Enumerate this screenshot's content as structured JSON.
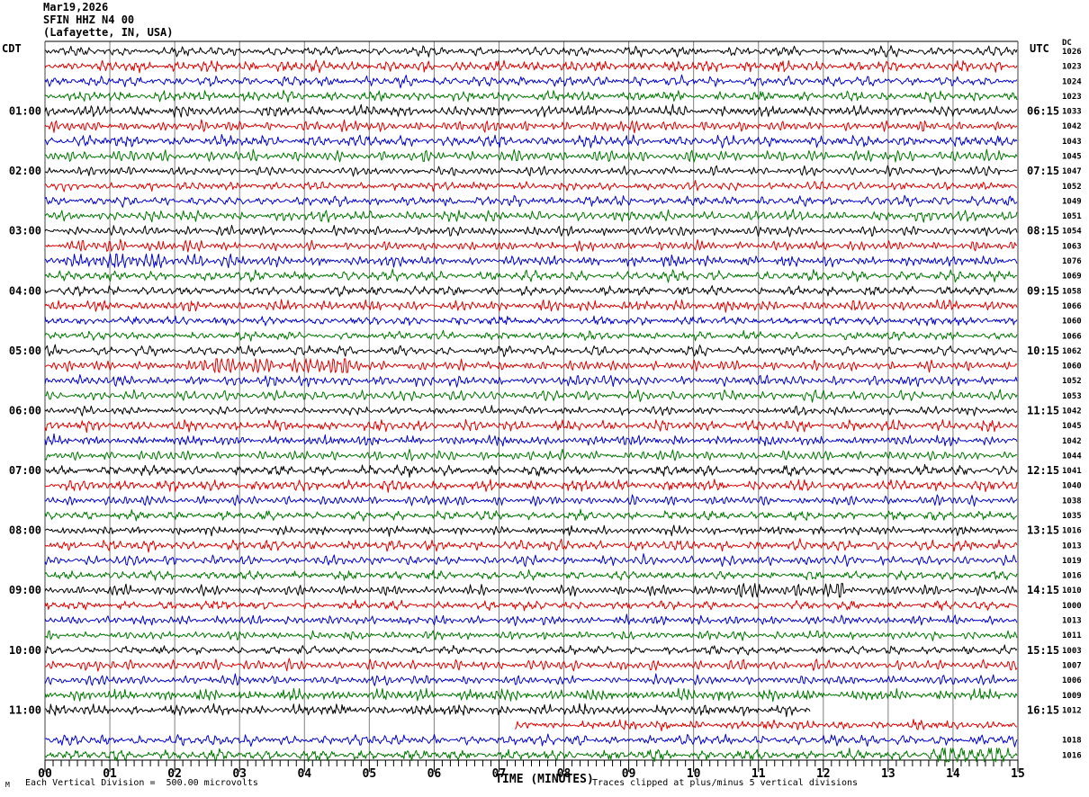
{
  "header": {
    "date": "Mar19,2026",
    "station": "SFIN HHZ N4 00",
    "location": "(Lafayette, IN, USA)"
  },
  "axes": {
    "left_label": "CDT",
    "right_label": "UTC",
    "dc_label": "DC",
    "x_label": "TIME (MINUTES)",
    "x_ticks": [
      "00",
      "01",
      "02",
      "03",
      "04",
      "05",
      "06",
      "07",
      "08",
      "09",
      "10",
      "11",
      "12",
      "13",
      "14",
      "15"
    ]
  },
  "footer": {
    "left_note": "Each Vertical Division =  500.00 microvolts",
    "right_note": "Traces clipped at plus/minus 5 vertical divisions",
    "corner_glyph": "M"
  },
  "chart_data": {
    "type": "line",
    "subtype": "helicorder-seismogram",
    "title": "SFIN HHZ N4 00 (Lafayette, IN, USA) Mar19,2026",
    "xlabel": "TIME (MINUTES)",
    "x_range_minutes": [
      0,
      15
    ],
    "major_tick_every_minutes": 1,
    "minor_divisions_per_minute": 8,
    "minutes_per_row": 15,
    "rows_per_hour": 4,
    "grid_color": "#808080",
    "border_color": "#404040",
    "trace_colors": {
      "black": "#000000",
      "red": "#e00000",
      "blue": "#0000cc",
      "green": "#007700"
    },
    "vertical_division_microvolts": 500.0,
    "clip_divisions": 5,
    "rows": [
      {
        "c": "black",
        "dc": "1026"
      },
      {
        "c": "red",
        "dc": "1023"
      },
      {
        "c": "blue",
        "dc": "1024"
      },
      {
        "c": "green",
        "dc": "1023"
      },
      {
        "c": "black",
        "dc": "1033",
        "cdt": "01:00",
        "utc": "06:15"
      },
      {
        "c": "red",
        "dc": "1042"
      },
      {
        "c": "blue",
        "dc": "1043"
      },
      {
        "c": "green",
        "dc": "1045"
      },
      {
        "c": "black",
        "dc": "1047",
        "cdt": "02:00",
        "utc": "07:15"
      },
      {
        "c": "red",
        "dc": "1052"
      },
      {
        "c": "blue",
        "dc": "1049"
      },
      {
        "c": "green",
        "dc": "1051"
      },
      {
        "c": "black",
        "dc": "1054",
        "cdt": "03:00",
        "utc": "08:15"
      },
      {
        "c": "red",
        "dc": "1063",
        "bursts": [
          [
            0.4,
            2.3,
            1.5
          ]
        ]
      },
      {
        "c": "blue",
        "dc": "1076",
        "bursts": [
          [
            0.1,
            2.9,
            2.0
          ]
        ]
      },
      {
        "c": "green",
        "dc": "1069"
      },
      {
        "c": "black",
        "dc": "1058",
        "cdt": "04:00",
        "utc": "09:15"
      },
      {
        "c": "red",
        "dc": "1066"
      },
      {
        "c": "blue",
        "dc": "1060"
      },
      {
        "c": "green",
        "dc": "1066"
      },
      {
        "c": "black",
        "dc": "1062",
        "cdt": "05:00",
        "utc": "10:15"
      },
      {
        "c": "red",
        "dc": "1060",
        "bursts": [
          [
            2.3,
            4.9,
            2.4
          ]
        ]
      },
      {
        "c": "blue",
        "dc": "1052"
      },
      {
        "c": "green",
        "dc": "1053"
      },
      {
        "c": "black",
        "dc": "1042",
        "cdt": "06:00",
        "utc": "11:15"
      },
      {
        "c": "red",
        "dc": "1045"
      },
      {
        "c": "blue",
        "dc": "1042"
      },
      {
        "c": "green",
        "dc": "1044"
      },
      {
        "c": "black",
        "dc": "1041",
        "cdt": "07:00",
        "utc": "12:15"
      },
      {
        "c": "red",
        "dc": "1040"
      },
      {
        "c": "blue",
        "dc": "1038"
      },
      {
        "c": "green",
        "dc": "1035"
      },
      {
        "c": "black",
        "dc": "1016",
        "cdt": "08:00",
        "utc": "13:15"
      },
      {
        "c": "red",
        "dc": "1013"
      },
      {
        "c": "blue",
        "dc": "1019"
      },
      {
        "c": "green",
        "dc": "1016"
      },
      {
        "c": "black",
        "dc": "1010",
        "cdt": "09:00",
        "utc": "14:15",
        "bursts": [
          [
            10.6,
            12.3,
            1.9
          ]
        ]
      },
      {
        "c": "red",
        "dc": "1000"
      },
      {
        "c": "blue",
        "dc": "1013"
      },
      {
        "c": "green",
        "dc": "1011"
      },
      {
        "c": "black",
        "dc": "1003",
        "cdt": "10:00",
        "utc": "15:15"
      },
      {
        "c": "red",
        "dc": "1007"
      },
      {
        "c": "blue",
        "dc": "1006"
      },
      {
        "c": "green",
        "dc": "1009"
      },
      {
        "c": "black",
        "dc": "1012",
        "cdt": "11:00",
        "utc": "16:15",
        "end": 11.8
      },
      {
        "c": "red",
        "dc": "",
        "start": 7.25
      },
      {
        "c": "blue",
        "dc": "1018"
      },
      {
        "c": "green",
        "dc": "1016",
        "bursts": [
          [
            13.6,
            14.95,
            2.4
          ]
        ]
      }
    ]
  }
}
